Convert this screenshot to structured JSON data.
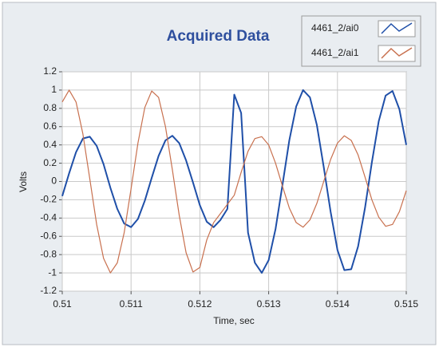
{
  "chart_data": {
    "type": "line",
    "title": "Acquired Data",
    "xlabel": "Time, sec",
    "ylabel": "Volts",
    "x": [
      0.51,
      0.5101,
      0.5102,
      0.5103,
      0.5104,
      0.5105,
      0.5106,
      0.5107,
      0.5108,
      0.5109,
      0.511,
      0.5111,
      0.5112,
      0.5113,
      0.5114,
      0.5115,
      0.5116,
      0.5117,
      0.5118,
      0.5119,
      0.512,
      0.5121,
      0.5122,
      0.5123,
      0.5124,
      0.5125,
      0.5126,
      0.5127,
      0.5128,
      0.5129,
      0.513,
      0.5131,
      0.5132,
      0.5133,
      0.5134,
      0.5135,
      0.5136,
      0.5137,
      0.5138,
      0.5139,
      0.514,
      0.5141,
      0.5142,
      0.5143,
      0.5144,
      0.5145,
      0.5146,
      0.5147,
      0.5148,
      0.5149,
      0.515
    ],
    "series": [
      {
        "name": "4461_2/ai0",
        "color": "#1f4fa8",
        "values": [
          -0.16,
          0.09,
          0.32,
          0.47,
          0.49,
          0.39,
          0.19,
          -0.07,
          -0.3,
          -0.46,
          -0.5,
          -0.41,
          -0.21,
          0.04,
          0.28,
          0.45,
          0.5,
          0.42,
          0.23,
          -0.01,
          -0.26,
          -0.44,
          -0.5,
          -0.42,
          -0.3,
          0.95,
          0.75,
          -0.56,
          -0.89,
          -1.0,
          -0.86,
          -0.52,
          -0.04,
          0.45,
          0.82,
          1.0,
          0.92,
          0.62,
          0.16,
          -0.33,
          -0.75,
          -0.97,
          -0.96,
          -0.71,
          -0.29,
          0.21,
          0.66,
          0.94,
          0.99,
          0.79,
          0.4
        ]
      },
      {
        "name": "4461_2/ai1",
        "color": "#c8704e",
        "values": [
          0.87,
          1.0,
          0.87,
          0.52,
          0.03,
          -0.47,
          -0.84,
          -1.0,
          -0.89,
          -0.56,
          -0.08,
          0.42,
          0.81,
          0.99,
          0.92,
          0.6,
          0.13,
          -0.37,
          -0.78,
          -0.99,
          -0.94,
          -0.64,
          -0.45,
          -0.35,
          -0.25,
          -0.15,
          0.1,
          0.33,
          0.47,
          0.49,
          0.4,
          0.2,
          -0.05,
          -0.29,
          -0.45,
          -0.5,
          -0.42,
          -0.24,
          0.0,
          0.24,
          0.42,
          0.5,
          0.45,
          0.29,
          0.05,
          -0.2,
          -0.39,
          -0.49,
          -0.47,
          -0.33,
          -0.1
        ]
      }
    ],
    "xlim": [
      0.51,
      0.515
    ],
    "xticks": [
      0.51,
      0.511,
      0.512,
      0.513,
      0.514,
      0.515
    ],
    "ylim": [
      -1.2,
      1.2
    ],
    "yticks": [
      -1.2,
      -1,
      -0.8,
      -0.6,
      -0.4,
      -0.2,
      0,
      0.2,
      0.4,
      0.6,
      0.8,
      1,
      1.2
    ],
    "grid": true,
    "legend": "top-right"
  }
}
